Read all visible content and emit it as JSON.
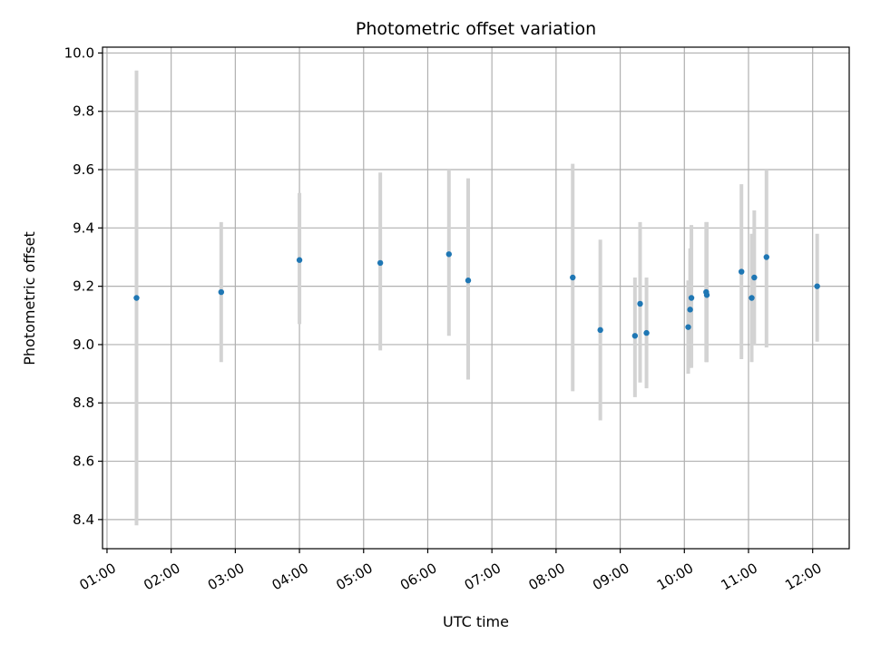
{
  "chart_data": {
    "type": "scatter",
    "title": "Photometric offset variation",
    "xlabel": "UTC time",
    "ylabel": "Photometric offset",
    "x_unit": "hours UTC",
    "xlim": [
      0.93,
      12.57
    ],
    "ylim": [
      8.3,
      10.02
    ],
    "grid": true,
    "legend": "none",
    "x_ticks": [
      {
        "value": 1,
        "label": "01:00"
      },
      {
        "value": 2,
        "label": "02:00"
      },
      {
        "value": 3,
        "label": "03:00"
      },
      {
        "value": 4,
        "label": "04:00"
      },
      {
        "value": 5,
        "label": "05:00"
      },
      {
        "value": 6,
        "label": "06:00"
      },
      {
        "value": 7,
        "label": "07:00"
      },
      {
        "value": 8,
        "label": "08:00"
      },
      {
        "value": 9,
        "label": "09:00"
      },
      {
        "value": 10,
        "label": "10:00"
      },
      {
        "value": 11,
        "label": "11:00"
      },
      {
        "value": 12,
        "label": "12:00"
      }
    ],
    "y_ticks": [
      {
        "value": 8.4,
        "label": "8.4"
      },
      {
        "value": 8.6,
        "label": "8.6"
      },
      {
        "value": 8.8,
        "label": "8.8"
      },
      {
        "value": 9.0,
        "label": "9.0"
      },
      {
        "value": 9.2,
        "label": "9.2"
      },
      {
        "value": 9.4,
        "label": "9.4"
      },
      {
        "value": 9.6,
        "label": "9.6"
      },
      {
        "value": 9.8,
        "label": "9.8"
      },
      {
        "value": 10.0,
        "label": "10.0"
      }
    ],
    "colors": {
      "marker": "#1f77b4",
      "errorbar": "#d3d3d3",
      "grid": "#b0b0b0",
      "axes": "#000000"
    },
    "points": [
      {
        "x": 1.46,
        "y": 9.16,
        "ylo": 8.38,
        "yhi": 9.94
      },
      {
        "x": 2.78,
        "y": 9.18,
        "ylo": 8.94,
        "yhi": 9.42
      },
      {
        "x": 4.0,
        "y": 9.29,
        "ylo": 9.07,
        "yhi": 9.52
      },
      {
        "x": 5.26,
        "y": 9.28,
        "ylo": 8.98,
        "yhi": 9.59
      },
      {
        "x": 6.33,
        "y": 9.31,
        "ylo": 9.03,
        "yhi": 9.6
      },
      {
        "x": 6.63,
        "y": 9.22,
        "ylo": 8.88,
        "yhi": 9.57
      },
      {
        "x": 8.26,
        "y": 9.23,
        "ylo": 8.84,
        "yhi": 9.62
      },
      {
        "x": 8.69,
        "y": 9.05,
        "ylo": 8.74,
        "yhi": 9.36
      },
      {
        "x": 9.23,
        "y": 9.03,
        "ylo": 8.82,
        "yhi": 9.23
      },
      {
        "x": 9.31,
        "y": 9.14,
        "ylo": 8.87,
        "yhi": 9.42
      },
      {
        "x": 9.41,
        "y": 9.04,
        "ylo": 8.85,
        "yhi": 9.23
      },
      {
        "x": 10.06,
        "y": 9.06,
        "ylo": 8.9,
        "yhi": 9.22
      },
      {
        "x": 10.09,
        "y": 9.12,
        "ylo": 8.92,
        "yhi": 9.33
      },
      {
        "x": 10.11,
        "y": 9.16,
        "ylo": 8.92,
        "yhi": 9.41
      },
      {
        "x": 10.34,
        "y": 9.18,
        "ylo": 8.94,
        "yhi": 9.42
      },
      {
        "x": 10.35,
        "y": 9.17,
        "ylo": 8.94,
        "yhi": 9.42
      },
      {
        "x": 10.89,
        "y": 9.25,
        "ylo": 8.95,
        "yhi": 9.55
      },
      {
        "x": 11.05,
        "y": 9.16,
        "ylo": 8.94,
        "yhi": 9.38
      },
      {
        "x": 11.09,
        "y": 9.23,
        "ylo": 9.0,
        "yhi": 9.46
      },
      {
        "x": 11.28,
        "y": 9.3,
        "ylo": 8.99,
        "yhi": 9.6
      },
      {
        "x": 12.07,
        "y": 9.2,
        "ylo": 9.01,
        "yhi": 9.38
      }
    ]
  }
}
